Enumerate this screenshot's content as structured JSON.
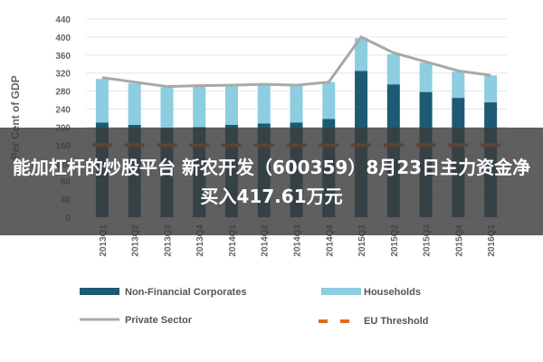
{
  "chart_data": {
    "type": "bar",
    "ylabel": "Per Cent of GDP",
    "ylim": [
      0,
      440
    ],
    "yticks": [
      0,
      40,
      80,
      120,
      160,
      200,
      240,
      280,
      320,
      360,
      400,
      440
    ],
    "categories": [
      "2013Q1",
      "2013Q2",
      "2013Q3",
      "2013Q4",
      "2014Q1",
      "2014Q2",
      "2014Q3",
      "2014Q4",
      "2015Q1",
      "2015Q2",
      "2015Q3",
      "2015Q4",
      "2016Q1"
    ],
    "series": [
      {
        "name": "Non-Financial Corporates",
        "kind": "bar",
        "color": "#1e5a74",
        "values": [
          210,
          205,
          198,
          200,
          205,
          208,
          210,
          218,
          325,
          295,
          278,
          265,
          255
        ]
      },
      {
        "name": "Households",
        "kind": "bar",
        "color": "#8ccde0",
        "values": [
          97,
          92,
          90,
          90,
          88,
          87,
          82,
          82,
          73,
          67,
          65,
          58,
          60
        ]
      },
      {
        "name": "Private Sector",
        "kind": "line",
        "color": "#a8a8a8",
        "values": [
          310,
          300,
          290,
          292,
          293,
          295,
          293,
          300,
          400,
          365,
          345,
          325,
          315
        ]
      },
      {
        "name": "EU Threshold",
        "kind": "dashed-line",
        "color": "#e06a1e",
        "values": [
          160,
          160,
          160,
          160,
          160,
          160,
          160,
          160,
          160,
          160,
          160,
          160,
          160
        ]
      }
    ]
  },
  "overlay": {
    "headline": "能加杠杆的炒股平台 新农开发（600359）8月23日主力资金净买入417.61万元"
  }
}
